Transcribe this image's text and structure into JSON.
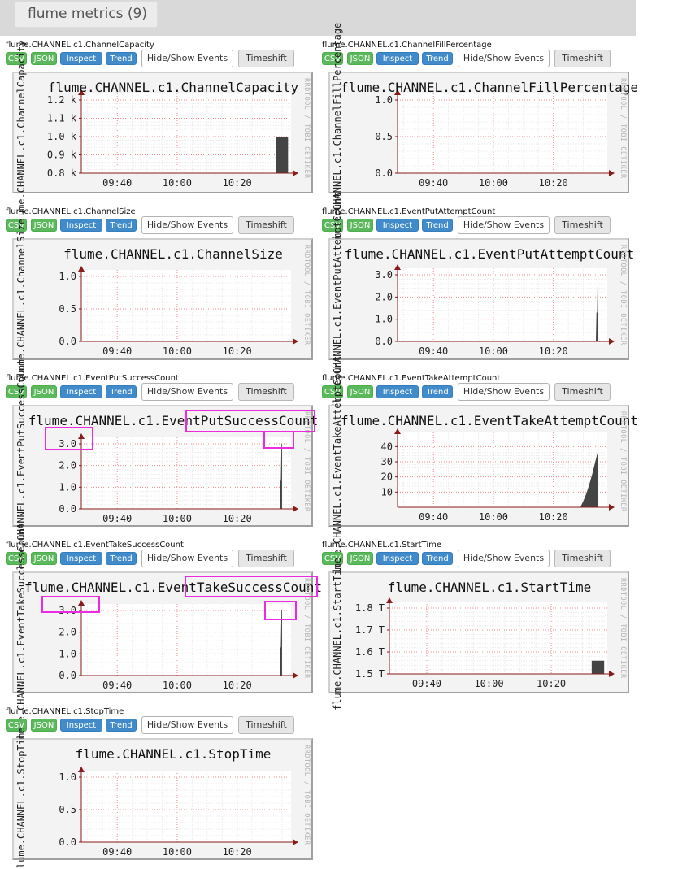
{
  "header": {
    "title": "flume metrics (9)"
  },
  "buttons": {
    "csv": "CSV",
    "json": "JSON",
    "inspect": "Inspect",
    "trend": "Trend",
    "events": "Hide/Show Events",
    "timeshift": "Timeshift"
  },
  "watermark": "RRDTOOL / TOBI OETIKER",
  "x_ticks": [
    "09:40",
    "10:00",
    "10:20"
  ],
  "colors": {
    "header_bg": "#d9d9d9",
    "btn_green": "#5cb85c",
    "btn_blue": "#428bca",
    "data_fill": "#444444",
    "axis_arrow": "#8b1a1a",
    "highlight": "#ea2be0"
  },
  "charts": [
    {
      "id": "channel-capacity",
      "name": "flume.CHANNEL.c1.ChannelCapacity",
      "chart_data": {
        "type": "area",
        "title": "flume.CHANNEL.c1.ChannelCapacity",
        "ylabel": "flume.CHANNEL.c1.ChannelCapacity",
        "y_ticks": [
          "1.2 k",
          "1.1 k",
          "1.0 k",
          "0.9 k",
          "0.8 k"
        ],
        "x_ticks": [
          "09:40",
          "10:00",
          "10:20"
        ],
        "ylim": [
          800,
          1200
        ],
        "xlim": [
          "09:28",
          "10:38"
        ],
        "x": [
          "10:33",
          "10:37"
        ],
        "y": [
          1000,
          1000
        ]
      }
    },
    {
      "id": "channel-fill-percentage",
      "name": "flume.CHANNEL.c1.ChannelFillPercentage",
      "chart_data": {
        "type": "area",
        "title": "flume.CHANNEL.c1.ChannelFillPercentage",
        "ylabel": "flume.CHANNEL.c1.ChannelFillPercentage",
        "y_ticks": [
          "1.0",
          "0.5",
          "0.0"
        ],
        "x_ticks": [
          "09:40",
          "10:00",
          "10:20"
        ],
        "ylim": [
          0,
          1
        ],
        "xlim": [
          "09:28",
          "10:38"
        ],
        "x": [],
        "y": []
      }
    },
    {
      "id": "channel-size",
      "name": "flume.CHANNEL.c1.ChannelSize",
      "chart_data": {
        "type": "area",
        "title": "flume.CHANNEL.c1.ChannelSize",
        "ylabel": "flume.CHANNEL.c1.ChannelSize",
        "y_ticks": [
          "1.0",
          "0.5",
          "0.0"
        ],
        "x_ticks": [
          "09:40",
          "10:00",
          "10:20"
        ],
        "ylim": [
          0,
          1
        ],
        "xlim": [
          "09:28",
          "10:38"
        ],
        "x": [],
        "y": []
      }
    },
    {
      "id": "event-put-attempt-count",
      "name": "flume.CHANNEL.c1.EventPutAttemptCount",
      "chart_data": {
        "type": "area",
        "title": "flume.CHANNEL.c1.EventPutAttemptCount",
        "ylabel": "flume.CHANNEL.c1.EventPutAttemptCount",
        "y_ticks": [
          "3.0",
          "2.0",
          "1.0",
          "0.0"
        ],
        "x_ticks": [
          "09:40",
          "10:00",
          "10:20"
        ],
        "ylim": [
          0,
          3
        ],
        "xlim": [
          "09:28",
          "10:38"
        ],
        "x": [
          "10:34.2",
          "10:34.4",
          "10:34.6",
          "10:34.8",
          "10:35.0"
        ],
        "y": [
          0,
          1.3,
          1.3,
          3,
          3
        ]
      }
    },
    {
      "id": "event-put-success-count",
      "name": "flume.CHANNEL.c1.EventPutSuccessCount",
      "chart_data": {
        "type": "area",
        "title": "flume.CHANNEL.c1.EventPutSuccessCount",
        "ylabel": "flume.CHANNEL.c1.EventPutSuccessCount",
        "y_ticks": [
          "3.0",
          "2.0",
          "1.0",
          "0.0"
        ],
        "x_ticks": [
          "09:40",
          "10:00",
          "10:20"
        ],
        "ylim": [
          0,
          3
        ],
        "xlim": [
          "09:28",
          "10:38"
        ],
        "x": [
          "10:34.2",
          "10:34.4",
          "10:34.6",
          "10:34.8",
          "10:35.0"
        ],
        "y": [
          0,
          1.3,
          1.3,
          3,
          3
        ]
      }
    },
    {
      "id": "event-take-attempt-count",
      "name": "flume.CHANNEL.c1.EventTakeAttemptCount",
      "chart_data": {
        "type": "area",
        "title": "flume.CHANNEL.c1.EventTakeAttemptCount",
        "ylabel": "flume.CHANNEL.c1.EventTakeAttemptCount",
        "y_ticks": [
          "40",
          "30",
          "20",
          "10"
        ],
        "x_ticks": [
          "09:40",
          "10:00",
          "10:20"
        ],
        "ylim": [
          0,
          45
        ],
        "xlim": [
          "09:28",
          "10:38"
        ],
        "x": [
          "10:29",
          "10:30",
          "10:31",
          "10:32",
          "10:33",
          "10:34",
          "10:35"
        ],
        "y": [
          0,
          4,
          9,
          15,
          22,
          30,
          38
        ]
      }
    },
    {
      "id": "event-take-success-count",
      "name": "flume.CHANNEL.c1.EventTakeSuccessCount",
      "chart_data": {
        "type": "area",
        "title": "flume.CHANNEL.c1.EventTakeSuccessCount",
        "ylabel": "flume.CHANNEL.c1.EventTakeSuccessCount",
        "y_ticks": [
          "3.0",
          "2.0",
          "1.0",
          "0.0"
        ],
        "x_ticks": [
          "09:40",
          "10:00",
          "10:20"
        ],
        "ylim": [
          0,
          3
        ],
        "xlim": [
          "09:28",
          "10:38"
        ],
        "x": [
          "10:34.2",
          "10:34.4",
          "10:34.6",
          "10:34.8",
          "10:35.0"
        ],
        "y": [
          0,
          1.3,
          1.3,
          3,
          3
        ]
      }
    },
    {
      "id": "start-time",
      "name": "flume.CHANNEL.c1.StartTime",
      "chart_data": {
        "type": "area",
        "title": "flume.CHANNEL.c1.StartTime",
        "ylabel": "flume.CHANNEL.c1.StartTime",
        "y_ticks": [
          "1.8 T",
          "1.7 T",
          "1.6 T",
          "1.5 T"
        ],
        "x_ticks": [
          "09:40",
          "10:00",
          "10:20"
        ],
        "ylim": [
          1.5,
          1.8
        ],
        "xlim": [
          "09:28",
          "10:38"
        ],
        "x": [
          "10:33",
          "10:37"
        ],
        "y": [
          1.56,
          1.56
        ]
      }
    },
    {
      "id": "stop-time",
      "name": "flume.CHANNEL.c1.StopTime",
      "chart_data": {
        "type": "area",
        "title": "flume.CHANNEL.c1.StopTime",
        "ylabel": "flume.CHANNEL.c1.StopTime",
        "y_ticks": [
          "1.0",
          "0.5",
          "0.0"
        ],
        "x_ticks": [
          "09:40",
          "10:00",
          "10:20"
        ],
        "ylim": [
          0,
          1
        ],
        "xlim": [
          "09:28",
          "10:38"
        ],
        "x": [],
        "y": []
      }
    }
  ]
}
